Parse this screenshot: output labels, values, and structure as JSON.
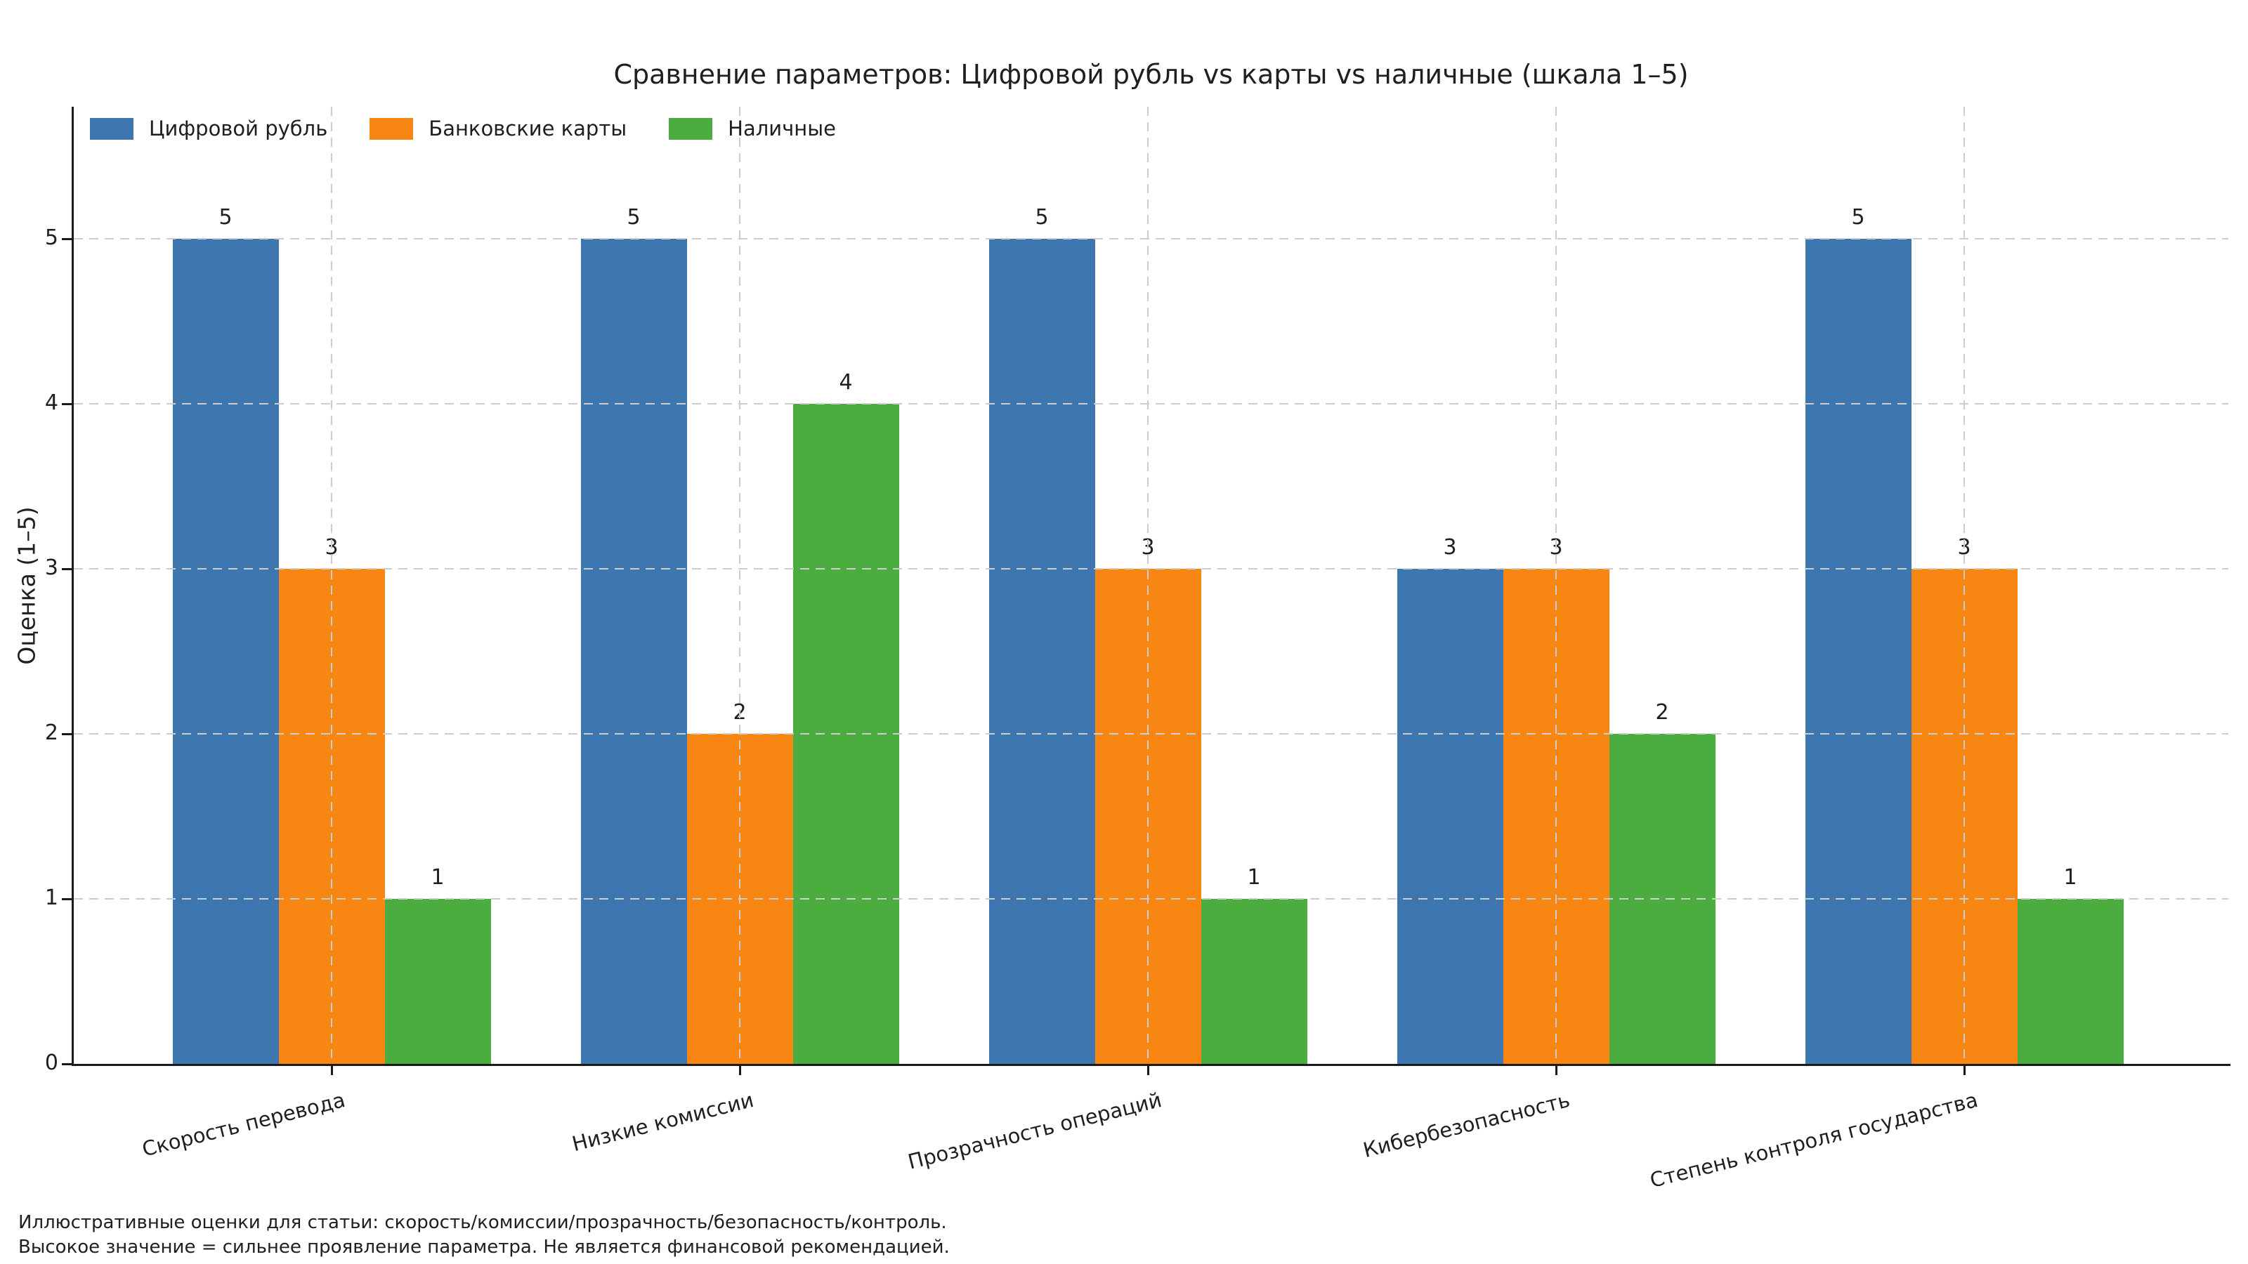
{
  "title": "Сравнение параметров: Цифровой рубль vs карты vs наличные (шкала 1–5)",
  "ylabel": "Оценка (1–5)",
  "footnote": {
    "line1": "Иллюстративные оценки для статьи: скорость/комиссии/прозрачность/безопасность/контроль.",
    "line2": "Высокое значение = сильнее проявление параметра. Не является финансовой рекомендацией."
  },
  "colors": {
    "digital_ruble": "#3e76af",
    "bank_cards": "#f78612",
    "cash": "#4bac40",
    "grid": "#cdcdcd",
    "axis": "#1a1a1a",
    "text": "#1f1f1f",
    "background": "#ffffff"
  },
  "chart_data": {
    "type": "bar",
    "title": "Сравнение параметров: Цифровой рубль vs карты vs наличные (шкала 1–5)",
    "xlabel": "",
    "ylabel": "Оценка (1–5)",
    "categories": [
      "Скорость перевода",
      "Низкие комиссии",
      "Прозрачность операций",
      "Кибербезопасность",
      "Степень контроля государства"
    ],
    "series": [
      {
        "name": "Цифровой рубль",
        "color": "#3e76af",
        "values": [
          5,
          5,
          5,
          3,
          5
        ]
      },
      {
        "name": "Банковские карты",
        "color": "#f78612",
        "values": [
          3,
          2,
          3,
          3,
          3
        ]
      },
      {
        "name": "Наличные",
        "color": "#4bac40",
        "values": [
          1,
          4,
          1,
          2,
          1
        ]
      }
    ],
    "yticks": [
      0,
      1,
      2,
      3,
      4,
      5
    ],
    "ylim": [
      0,
      5.8
    ],
    "bar_value_labels": true,
    "grid": "dashed light-gray horizontal and vertical, drawn over bars",
    "legend_position": "upper left, no frame",
    "annotations": [
      "Иллюстративные оценки для статьи: скорость/комиссии/прозрачность/безопасность/контроль.",
      "Высокое значение = сильнее проявление параметра. Не является финансовой рекомендацией."
    ]
  }
}
